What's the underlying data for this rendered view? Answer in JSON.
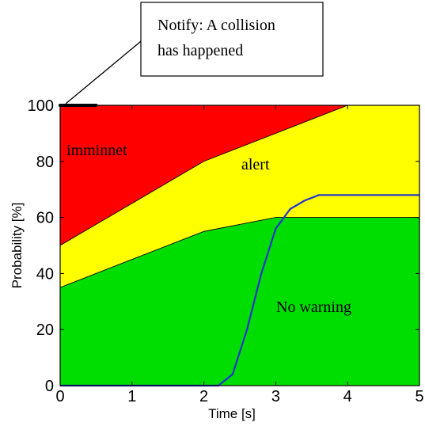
{
  "chart_data": {
    "type": "area",
    "xlabel": "Time [s]",
    "ylabel": "Probability [%]",
    "xlim": [
      0,
      5
    ],
    "ylim": [
      0,
      100
    ],
    "xticks": [
      "0",
      "1",
      "2",
      "3",
      "4",
      "5"
    ],
    "yticks": [
      "0",
      "20",
      "40",
      "60",
      "80",
      "100"
    ],
    "grid": false,
    "regions": [
      {
        "name": "imminnet",
        "color": "#ff0000",
        "lower_boundary": {
          "x": [
            0,
            2,
            4,
            5
          ],
          "y": [
            50,
            80,
            100,
            100
          ]
        },
        "upper": 100
      },
      {
        "name": "alert",
        "color": "#ffff00",
        "lower_boundary": {
          "x": [
            0,
            2,
            3,
            5
          ],
          "y": [
            35,
            55,
            60,
            60
          ]
        }
      },
      {
        "name": "No warning",
        "color": "#00dd00",
        "lower": 0
      }
    ],
    "series": [
      {
        "color": "#2233cc",
        "x": [
          0,
          2.2,
          2.4,
          2.6,
          2.8,
          3.0,
          3.2,
          3.4,
          3.6,
          5.0
        ],
        "y": [
          0,
          0,
          4,
          20,
          40,
          56,
          63,
          66,
          68,
          68
        ]
      }
    ],
    "marker": {
      "color": "#000000",
      "x": [
        0,
        0.5
      ],
      "y": [
        100,
        100
      ]
    },
    "annotation": {
      "lines": [
        "Notify: A collision",
        "has happened"
      ]
    }
  }
}
